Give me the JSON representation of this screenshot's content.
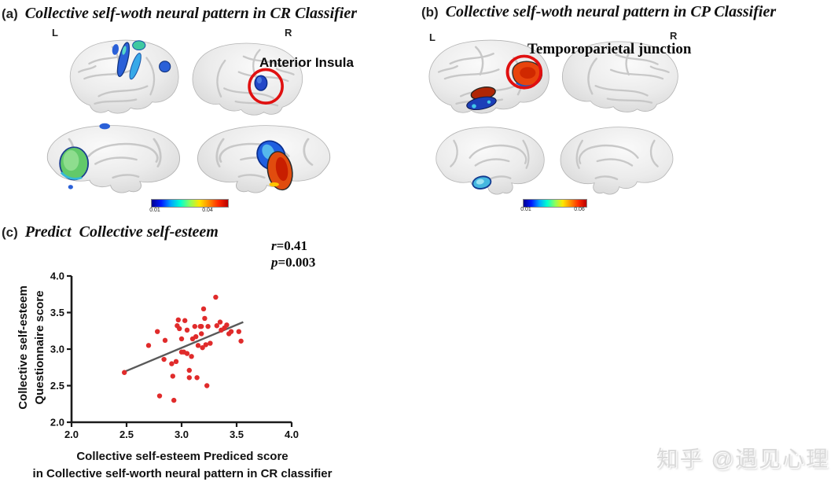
{
  "panel_a": {
    "tag": "(a)",
    "title": "Collective self-woth neural pattern in CR Classifier",
    "left_hemisphere_label": "L",
    "right_hemisphere_label": "R",
    "annotation": "Anterior Insula",
    "colorbar": {
      "min": "0.01",
      "max": "0.04"
    }
  },
  "panel_b": {
    "tag": "(b)",
    "title": "Collective self-woth neural pattern in CP Classifier",
    "left_hemisphere_label": "L",
    "right_hemisphere_label": "R",
    "annotation": "Temporoparietal junction",
    "colorbar": {
      "min": "0.01",
      "max": "0.06"
    }
  },
  "panel_c": {
    "tag": "(c)",
    "title": "Predict  Collective self-esteem",
    "stats": {
      "r_var": "r",
      "r_value": "=0.41",
      "p_var": "p",
      "p_value": "=0.003"
    },
    "ylabel_line1": "Collective self-esteem",
    "ylabel_line2": "Questionnaire score",
    "xlabel_line1": "Collective self-esteem Prediced score",
    "xlabel_line2": "in Collective self-worth neural pattern in CR classifier"
  },
  "watermark": {
    "text": "知乎 @遇见心理"
  },
  "chart_data": {
    "type": "scatter",
    "title": "Predict Collective self-esteem",
    "xlabel": "Collective self-esteem Prediced score in Collective self-worth neural pattern in CR classifier",
    "ylabel": "Collective self-esteem Questionnaire score",
    "xlim": [
      2.0,
      4.0
    ],
    "ylim": [
      2.0,
      4.0
    ],
    "x_ticks": [
      "2.0",
      "2.5",
      "3.0",
      "3.5",
      "4.0"
    ],
    "y_ticks": [
      "2.0",
      "2.5",
      "3.0",
      "3.5",
      "4.0"
    ],
    "grid": false,
    "legend": false,
    "annotations": [
      "r=0.41",
      "p=0.003"
    ],
    "point_color": "#e02b2b",
    "trend_color": "#595959",
    "trend_line": {
      "x1": 2.48,
      "y1": 2.69,
      "x2": 3.56,
      "y2": 3.37
    },
    "points": [
      [
        2.48,
        2.68
      ],
      [
        2.7,
        3.05
      ],
      [
        2.78,
        3.24
      ],
      [
        2.8,
        2.36
      ],
      [
        2.84,
        2.86
      ],
      [
        2.85,
        3.12
      ],
      [
        2.91,
        2.8
      ],
      [
        2.92,
        2.63
      ],
      [
        2.93,
        2.3
      ],
      [
        2.95,
        2.83
      ],
      [
        2.96,
        3.32
      ],
      [
        2.97,
        3.4
      ],
      [
        2.98,
        3.28
      ],
      [
        3.0,
        2.96
      ],
      [
        3.0,
        3.14
      ],
      [
        3.02,
        2.96
      ],
      [
        3.03,
        3.39
      ],
      [
        3.05,
        3.26
      ],
      [
        3.05,
        2.94
      ],
      [
        3.07,
        2.71
      ],
      [
        3.07,
        2.61
      ],
      [
        3.09,
        2.9
      ],
      [
        3.1,
        3.14
      ],
      [
        3.12,
        3.31
      ],
      [
        3.13,
        3.17
      ],
      [
        3.14,
        2.61
      ],
      [
        3.15,
        3.05
      ],
      [
        3.17,
        3.31
      ],
      [
        3.18,
        3.21
      ],
      [
        3.18,
        3.31
      ],
      [
        3.19,
        3.02
      ],
      [
        3.2,
        3.55
      ],
      [
        3.21,
        3.42
      ],
      [
        3.22,
        3.06
      ],
      [
        3.23,
        2.5
      ],
      [
        3.24,
        3.31
      ],
      [
        3.26,
        3.08
      ],
      [
        3.31,
        3.71
      ],
      [
        3.32,
        3.32
      ],
      [
        3.35,
        3.37
      ],
      [
        3.36,
        3.26
      ],
      [
        3.39,
        3.29
      ],
      [
        3.41,
        3.33
      ],
      [
        3.43,
        3.21
      ],
      [
        3.45,
        3.24
      ],
      [
        3.52,
        3.24
      ],
      [
        3.54,
        3.11
      ]
    ]
  }
}
